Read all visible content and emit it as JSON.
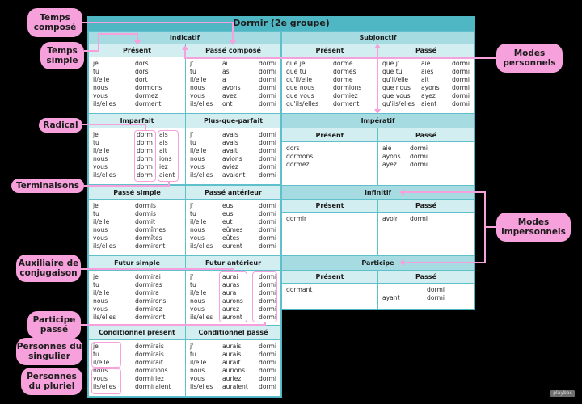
{
  "title": "Dormir (2e groupe)",
  "modes": {
    "indicatif": "Indicatif",
    "subjonctif": "Subjonctif",
    "imperatif": "Impératif",
    "infinitif": "Infinitif",
    "participe": "Participe"
  },
  "tenses": {
    "present": {
      "label": "Présent",
      "rows": [
        [
          "je",
          "dors"
        ],
        [
          "tu",
          "dors"
        ],
        [
          "il/elle",
          "dort"
        ],
        [
          "nous",
          "dormons"
        ],
        [
          "vous",
          "dormez"
        ],
        [
          "ils/elles",
          "dorment"
        ]
      ]
    },
    "passe_compose": {
      "label": "Passé composé",
      "rows": [
        [
          "j'",
          "ai",
          "dormi"
        ],
        [
          "tu",
          "as",
          "dormi"
        ],
        [
          "il/elle",
          "a",
          "dormi"
        ],
        [
          "nous",
          "avons",
          "dormi"
        ],
        [
          "vous",
          "avez",
          "dormi"
        ],
        [
          "ils/elles",
          "ont",
          "dormi"
        ]
      ]
    },
    "imparfait": {
      "label": "Imparfait",
      "rows": [
        [
          "je",
          "dorm",
          "ais"
        ],
        [
          "tu",
          "dorm",
          "ais"
        ],
        [
          "il/elle",
          "dorm",
          "ait"
        ],
        [
          "nous",
          "dorm",
          "ions"
        ],
        [
          "vous",
          "dorm",
          "iez"
        ],
        [
          "ils/elles",
          "dorm",
          "aient"
        ]
      ]
    },
    "plus_que_parfait": {
      "label": "Plus-que-parfait",
      "rows": [
        [
          "j'",
          "avais",
          "dormi"
        ],
        [
          "tu",
          "avais",
          "dormi"
        ],
        [
          "il/elle",
          "avait",
          "dormi"
        ],
        [
          "nous",
          "avions",
          "dormi"
        ],
        [
          "vous",
          "aviez",
          "dormi"
        ],
        [
          "ils/elles",
          "avaient",
          "dormi"
        ]
      ]
    },
    "passe_simple": {
      "label": "Passé simple",
      "rows": [
        [
          "je",
          "dormis"
        ],
        [
          "tu",
          "dormis"
        ],
        [
          "il/elle",
          "dormit"
        ],
        [
          "nous",
          "dormîmes"
        ],
        [
          "vous",
          "dormîtes"
        ],
        [
          "ils/elles",
          "dormirent"
        ]
      ]
    },
    "passe_anterieur": {
      "label": "Passé antérieur",
      "rows": [
        [
          "j'",
          "eus",
          "dormi"
        ],
        [
          "tu",
          "eus",
          "dormi"
        ],
        [
          "il/elle",
          "eut",
          "dormi"
        ],
        [
          "nous",
          "eûmes",
          "dormi"
        ],
        [
          "vous",
          "eûtes",
          "dormi"
        ],
        [
          "ils/elles",
          "eurent",
          "dormi"
        ]
      ]
    },
    "futur_simple": {
      "label": "Futur simple",
      "rows": [
        [
          "je",
          "dormirai"
        ],
        [
          "tu",
          "dormiras"
        ],
        [
          "il/elle",
          "dormira"
        ],
        [
          "nous",
          "dormirons"
        ],
        [
          "vous",
          "dormirez"
        ],
        [
          "ils/elles",
          "dormiront"
        ]
      ]
    },
    "futur_anterieur": {
      "label": "Futur antérieur",
      "rows": [
        [
          "j'",
          "aurai",
          "dormi"
        ],
        [
          "tu",
          "auras",
          "dormi"
        ],
        [
          "il/elle",
          "aura",
          "dormi"
        ],
        [
          "nous",
          "aurons",
          "dormi"
        ],
        [
          "vous",
          "aurez",
          "dormi"
        ],
        [
          "ils/elles",
          "auront",
          "dormi"
        ]
      ]
    },
    "conditionnel_present": {
      "label": "Conditionnel présent",
      "rows": [
        [
          "je",
          "dormirais"
        ],
        [
          "tu",
          "dormirais"
        ],
        [
          "il/elle",
          "dormirait"
        ],
        [
          "nous",
          "dormirions"
        ],
        [
          "vous",
          "dormiriez"
        ],
        [
          "ils/elles",
          "dormiraient"
        ]
      ]
    },
    "conditionnel_passe": {
      "label": "Conditionnel passé",
      "rows": [
        [
          "j'",
          "aurais",
          "dormi"
        ],
        [
          "tu",
          "aurais",
          "dormi"
        ],
        [
          "il/elle",
          "aurait",
          "dormi"
        ],
        [
          "nous",
          "aurions",
          "dormi"
        ],
        [
          "vous",
          "auriez",
          "dormi"
        ],
        [
          "ils/elles",
          "auraient",
          "dormi"
        ]
      ]
    },
    "subj_present": {
      "label": "Présent",
      "rows": [
        [
          "que je",
          "dorme"
        ],
        [
          "que tu",
          "dormes"
        ],
        [
          "qu'il/elle",
          "dorme"
        ],
        [
          "que nous",
          "dormions"
        ],
        [
          "que vous",
          "dormiez"
        ],
        [
          "qu'ils/elles",
          "dorment"
        ]
      ]
    },
    "subj_passe": {
      "label": "Passé",
      "rows": [
        [
          "que j'",
          "aie",
          "dormi"
        ],
        [
          "que tu",
          "aies",
          "dormi"
        ],
        [
          "qu'il/elle",
          "ait",
          "dormi"
        ],
        [
          "que nous",
          "ayons",
          "dormi"
        ],
        [
          "que vous",
          "ayez",
          "dormi"
        ],
        [
          "qu'ils/elles",
          "aient",
          "dormi"
        ]
      ]
    },
    "imp_present": {
      "label": "Présent",
      "rows": [
        [
          "dors"
        ],
        [
          "dormons"
        ],
        [
          "dormez"
        ]
      ]
    },
    "imp_passe": {
      "label": "Passé",
      "rows": [
        [
          "aie",
          "dormi"
        ],
        [
          "ayons",
          "dormi"
        ],
        [
          "ayez",
          "dormi"
        ]
      ]
    },
    "inf_present": {
      "label": "Présent",
      "value": "dormir"
    },
    "inf_passe": {
      "label": "Passé",
      "aux": "avoir",
      "pp": "dormi"
    },
    "part_present": {
      "label": "Présent",
      "value": "dormant"
    },
    "part_passe": {
      "label": "Passé",
      "pp": "dormi",
      "aux": "ayant",
      "pp2": "dormi"
    }
  },
  "annotations": {
    "temps_compose": "Temps composé",
    "temps_simple": "Temps simple",
    "modes_personnels": "Modes personnels",
    "radical": "Radical",
    "terminaisons": "Terminaisons",
    "modes_impersonnels": "Modes impersonnels",
    "auxiliaire": "Auxiliaire de conjugaison",
    "participe_passe": "Participe passé",
    "personnes_singulier": "Personnes du singulier",
    "personnes_pluriel": "Personnes du pluriel"
  },
  "logo": "playbac"
}
